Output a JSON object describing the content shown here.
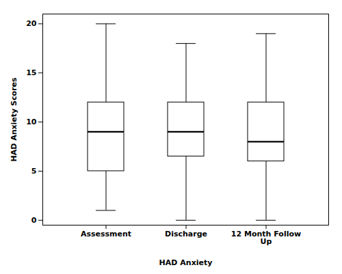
{
  "chart_data": {
    "type": "box",
    "categories": [
      "Assessment",
      "Discharge",
      "12 Month Follow\nUp"
    ],
    "boxes": [
      {
        "whislo": 1,
        "q1": 5,
        "med": 9,
        "q3": 12,
        "whishi": 20
      },
      {
        "whislo": 0,
        "q1": 6.5,
        "med": 9,
        "q3": 12,
        "whishi": 18
      },
      {
        "whislo": 0,
        "q1": 6,
        "med": 8,
        "q3": 12,
        "whishi": 19
      }
    ],
    "xlabel": "HAD Anxiety",
    "ylabel": "HAD Anxiety Scores",
    "ylim": [
      -0.5,
      21
    ],
    "yticks": [
      0,
      5,
      10,
      15,
      20
    ]
  }
}
